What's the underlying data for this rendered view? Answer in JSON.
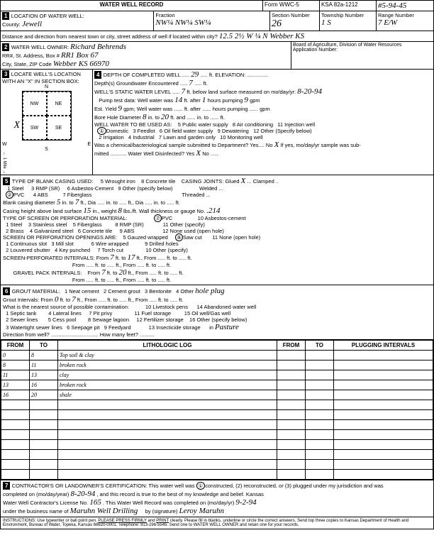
{
  "form": {
    "title": "WATER WELL RECORD",
    "form_no": "Form WWC-5",
    "ksa": "KSA 82a-1212",
    "file_no": "#5-94-45"
  },
  "loc": {
    "county": "Jewell",
    "fraction": "NW¼ NW¼ SW¼",
    "section": "26",
    "township": "1 S",
    "range": "7 E/W",
    "distance": "12.5 2½ W ¼ N Webber KS"
  },
  "owner": {
    "name": "Richard Behrends",
    "addr1": "RR1 Box 67",
    "addr2": "Webber KS 66970",
    "board": "Board of Agriculture, Division of Water Resources",
    "appno_lbl": "Application Number:"
  },
  "sec3": {
    "title": "LOCATE WELL'S LOCATION WITH AN \"X\" IN SECTION BOX:",
    "mark": "X"
  },
  "depth": {
    "completed": "29",
    "encountered": "7",
    "static": "7",
    "date": "8-20-94",
    "pump_was": "14",
    "pump_after": "1",
    "pump_hours": "9",
    "yield": "9",
    "bore_from": "8",
    "bore_to": "20",
    "use_circle": "Domestic"
  },
  "casing": {
    "type_circle": "PVC",
    "joints": "Glued X",
    "blank_dia": "5",
    "blank_to": "7",
    "height": "15",
    "gauge": ".214",
    "screen_type": "PVC",
    "screen_mat": "RMP (SR)",
    "opening": "Saw cut",
    "perf_from": "7",
    "perf_to": "17",
    "gravel_from": "7",
    "gravel_to": "20"
  },
  "grout": {
    "from": "0",
    "to": "7",
    "other": "hole plug",
    "contam": "Pasture"
  },
  "log": [
    {
      "f": "0",
      "t": "8",
      "d": "Top soil & clay"
    },
    {
      "f": "8",
      "t": "11",
      "d": "broken rock"
    },
    {
      "f": "11",
      "t": "13",
      "d": "clay"
    },
    {
      "f": "13",
      "t": "16",
      "d": "broken rock"
    },
    {
      "f": "16",
      "t": "20",
      "d": "shale"
    }
  ],
  "cert": {
    "completed_on": "8-20-94",
    "license": "165",
    "record_date": "9-2-94",
    "business": "Maruhn Well Drilling",
    "signature": "Leroy Maruhn"
  }
}
